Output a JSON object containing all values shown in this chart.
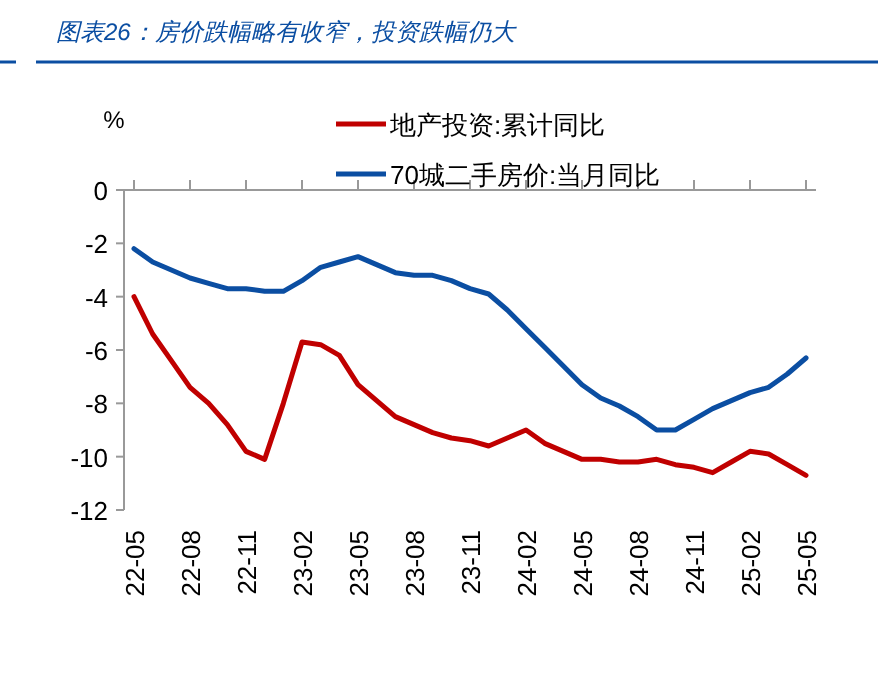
{
  "chart_data": {
    "type": "line",
    "title": "图表26：房价跌幅略有收窄，投资跌幅仍大",
    "ylabel": "%",
    "categories": [
      "22-05",
      null,
      null,
      "22-08",
      null,
      null,
      "22-11",
      null,
      null,
      "23-02",
      null,
      null,
      "23-05",
      null,
      null,
      "23-08",
      null,
      null,
      "23-11",
      null,
      null,
      "24-02",
      null,
      null,
      "24-05",
      null,
      null,
      "24-08",
      null,
      null,
      "24-11",
      null,
      null,
      "25-02",
      null,
      null,
      "25-05"
    ],
    "series": [
      {
        "name": "地产投资:累计同比",
        "color": "#c00000",
        "values": [
          -4.0,
          -5.4,
          -6.4,
          -7.4,
          -8.0,
          -8.8,
          -9.8,
          -10.1,
          -8.0,
          -5.7,
          -5.8,
          -6.2,
          -7.3,
          -7.9,
          -8.5,
          -8.8,
          -9.1,
          -9.3,
          -9.4,
          -9.6,
          -9.3,
          -9.0,
          -9.5,
          -9.8,
          -10.1,
          -10.1,
          -10.2,
          -10.2,
          -10.1,
          -10.3,
          -10.4,
          -10.6,
          -10.2,
          -9.8,
          -9.9,
          -10.3,
          -10.7
        ]
      },
      {
        "name": "70城二手房价:当月同比",
        "color": "#0b4ea2",
        "values": [
          -2.2,
          -2.7,
          -3.0,
          -3.3,
          -3.5,
          -3.7,
          -3.7,
          -3.8,
          -3.8,
          -3.4,
          -2.9,
          -2.7,
          -2.5,
          -2.8,
          -3.1,
          -3.2,
          -3.2,
          -3.4,
          -3.7,
          -3.9,
          -4.5,
          -5.2,
          -5.9,
          -6.6,
          -7.3,
          -7.8,
          -8.1,
          -8.5,
          -9.0,
          -9.0,
          -8.6,
          -8.2,
          -7.9,
          -7.6,
          -7.4,
          -6.9,
          -6.3
        ]
      }
    ],
    "ylim": [
      -12,
      0
    ],
    "yticks": [
      -12,
      -10,
      -8,
      -6,
      -4,
      -2,
      0
    ],
    "grid": false,
    "legend": "top",
    "marker": "none",
    "line_style": "solid"
  }
}
